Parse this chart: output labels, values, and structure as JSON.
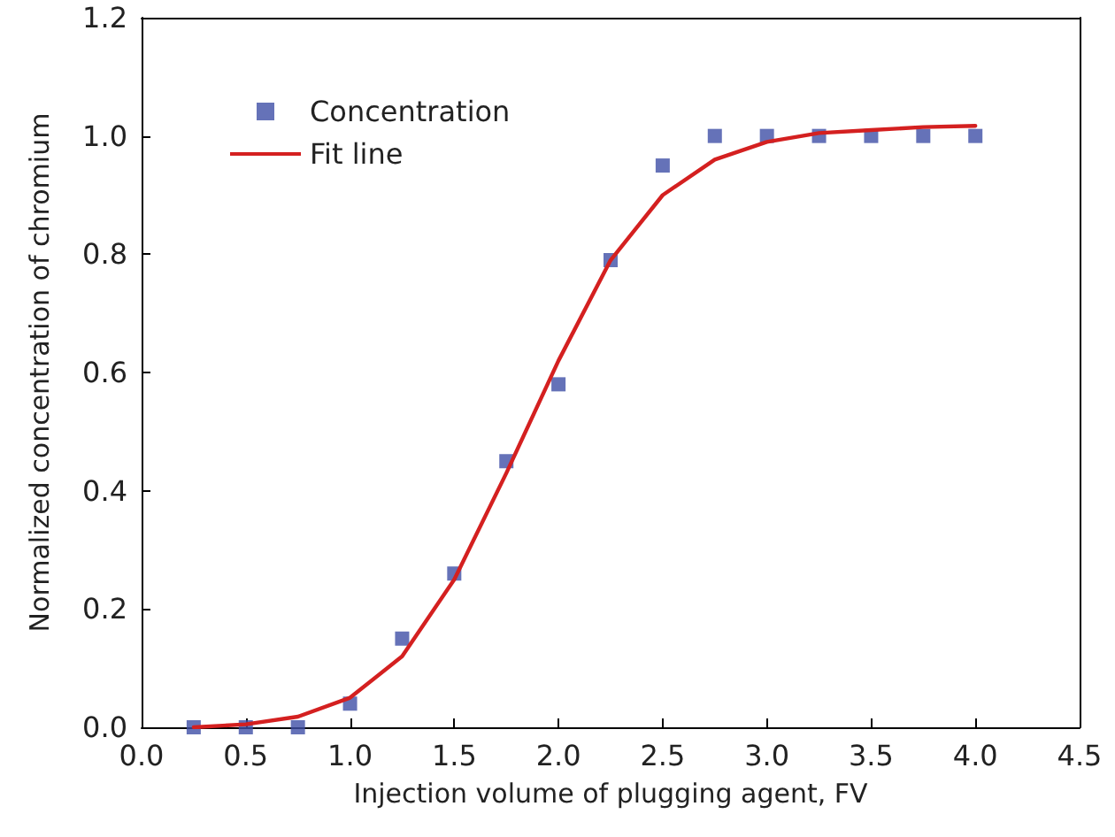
{
  "chart_data": {
    "type": "scatter",
    "xlabel": "Injection volume of plugging agent, FV",
    "ylabel": "Normalized concentration of chromium",
    "xlim": [
      0,
      4.5
    ],
    "ylim": [
      0,
      1.2
    ],
    "xticks": [
      {
        "value": 0,
        "label": "0.0"
      },
      {
        "value": 0.5,
        "label": "0.5"
      },
      {
        "value": 1,
        "label": "1.0"
      },
      {
        "value": 1.5,
        "label": "1.5"
      },
      {
        "value": 2,
        "label": "2.0"
      },
      {
        "value": 2.5,
        "label": "2.5"
      },
      {
        "value": 3,
        "label": "3.0"
      },
      {
        "value": 3.5,
        "label": "3.5"
      },
      {
        "value": 4,
        "label": "4.0"
      },
      {
        "value": 4.5,
        "label": "4.5"
      }
    ],
    "yticks": [
      {
        "value": 0,
        "label": "0.0"
      },
      {
        "value": 0.2,
        "label": "0.2"
      },
      {
        "value": 0.4,
        "label": "0.4"
      },
      {
        "value": 0.6,
        "label": "0.6"
      },
      {
        "value": 0.8,
        "label": "0.8"
      },
      {
        "value": 1,
        "label": "1.0"
      },
      {
        "value": 1.2,
        "label": "1.2"
      }
    ],
    "legend": "top left",
    "grid": false,
    "series": [
      {
        "name": "Concentration",
        "marker": "square",
        "color": "#3f4fa6",
        "x": [
          0.25,
          0.5,
          0.75,
          1.0,
          1.25,
          1.5,
          1.75,
          2.0,
          2.25,
          2.5,
          2.75,
          3.0,
          3.25,
          3.5,
          3.75,
          4.0
        ],
        "values": [
          0,
          0,
          0,
          0.04,
          0.15,
          0.26,
          0.45,
          0.58,
          0.79,
          0.95,
          1.0,
          1.0,
          1.0,
          1.0,
          1.0,
          1.0
        ]
      },
      {
        "name": "Fit line",
        "type": "line",
        "marker": "none",
        "line_style": "solid",
        "color": "#d42020",
        "x": [
          0.25,
          0.5,
          0.75,
          1.0,
          1.25,
          1.5,
          1.75,
          2.0,
          2.25,
          2.5,
          2.75,
          3.0,
          3.25,
          3.5,
          3.75,
          4.0
        ],
        "values": [
          0.0,
          0.005,
          0.018,
          0.05,
          0.12,
          0.25,
          0.43,
          0.62,
          0.79,
          0.9,
          0.96,
          0.99,
          1.005,
          1.01,
          1.015,
          1.017
        ]
      }
    ]
  }
}
